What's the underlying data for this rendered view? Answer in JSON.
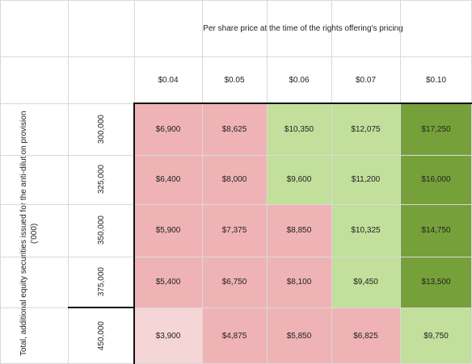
{
  "column_header_title": "Per share price at the time of the rights offering's pricing",
  "row_header_title": "Total, additional equity securities issued for the anti-dilution provision ('000)",
  "columns": [
    "$0.04",
    "$0.05",
    "$0.06",
    "$0.07",
    "$0.10"
  ],
  "rows": [
    {
      "label": "300,000",
      "cells": [
        "$6,900",
        "$8,625",
        "$10,350",
        "$12,075",
        "$17,250"
      ],
      "colors": [
        "red",
        "red",
        "lgreen",
        "lgreen",
        "dgreen"
      ]
    },
    {
      "label": "325,000",
      "cells": [
        "$6,400",
        "$8,000",
        "$9,600",
        "$11,200",
        "$16,000"
      ],
      "colors": [
        "red",
        "red",
        "lgreen",
        "lgreen",
        "dgreen"
      ]
    },
    {
      "label": "350,000",
      "cells": [
        "$5,900",
        "$7,375",
        "$8,850",
        "$10,325",
        "$14,750"
      ],
      "colors": [
        "red",
        "red",
        "red",
        "lgreen",
        "dgreen"
      ]
    },
    {
      "label": "375,000",
      "cells": [
        "$5,400",
        "$6,750",
        "$8,100",
        "$9,450",
        "$13,500"
      ],
      "colors": [
        "red",
        "red",
        "red",
        "lgreen",
        "dgreen"
      ]
    },
    {
      "label": "450,000",
      "cells": [
        "$3,900",
        "$4,875",
        "$5,850",
        "$6,825",
        "$9,750"
      ],
      "colors": [
        "pink",
        "red",
        "red",
        "red",
        "lgreen"
      ]
    }
  ],
  "colors": {
    "red": "#efb3b5",
    "pink": "#f6d5d6",
    "lgreen": "#c2df9b",
    "dgreen": "#76a03a",
    "grid": "#d9d9d9",
    "border": "#111111"
  }
}
